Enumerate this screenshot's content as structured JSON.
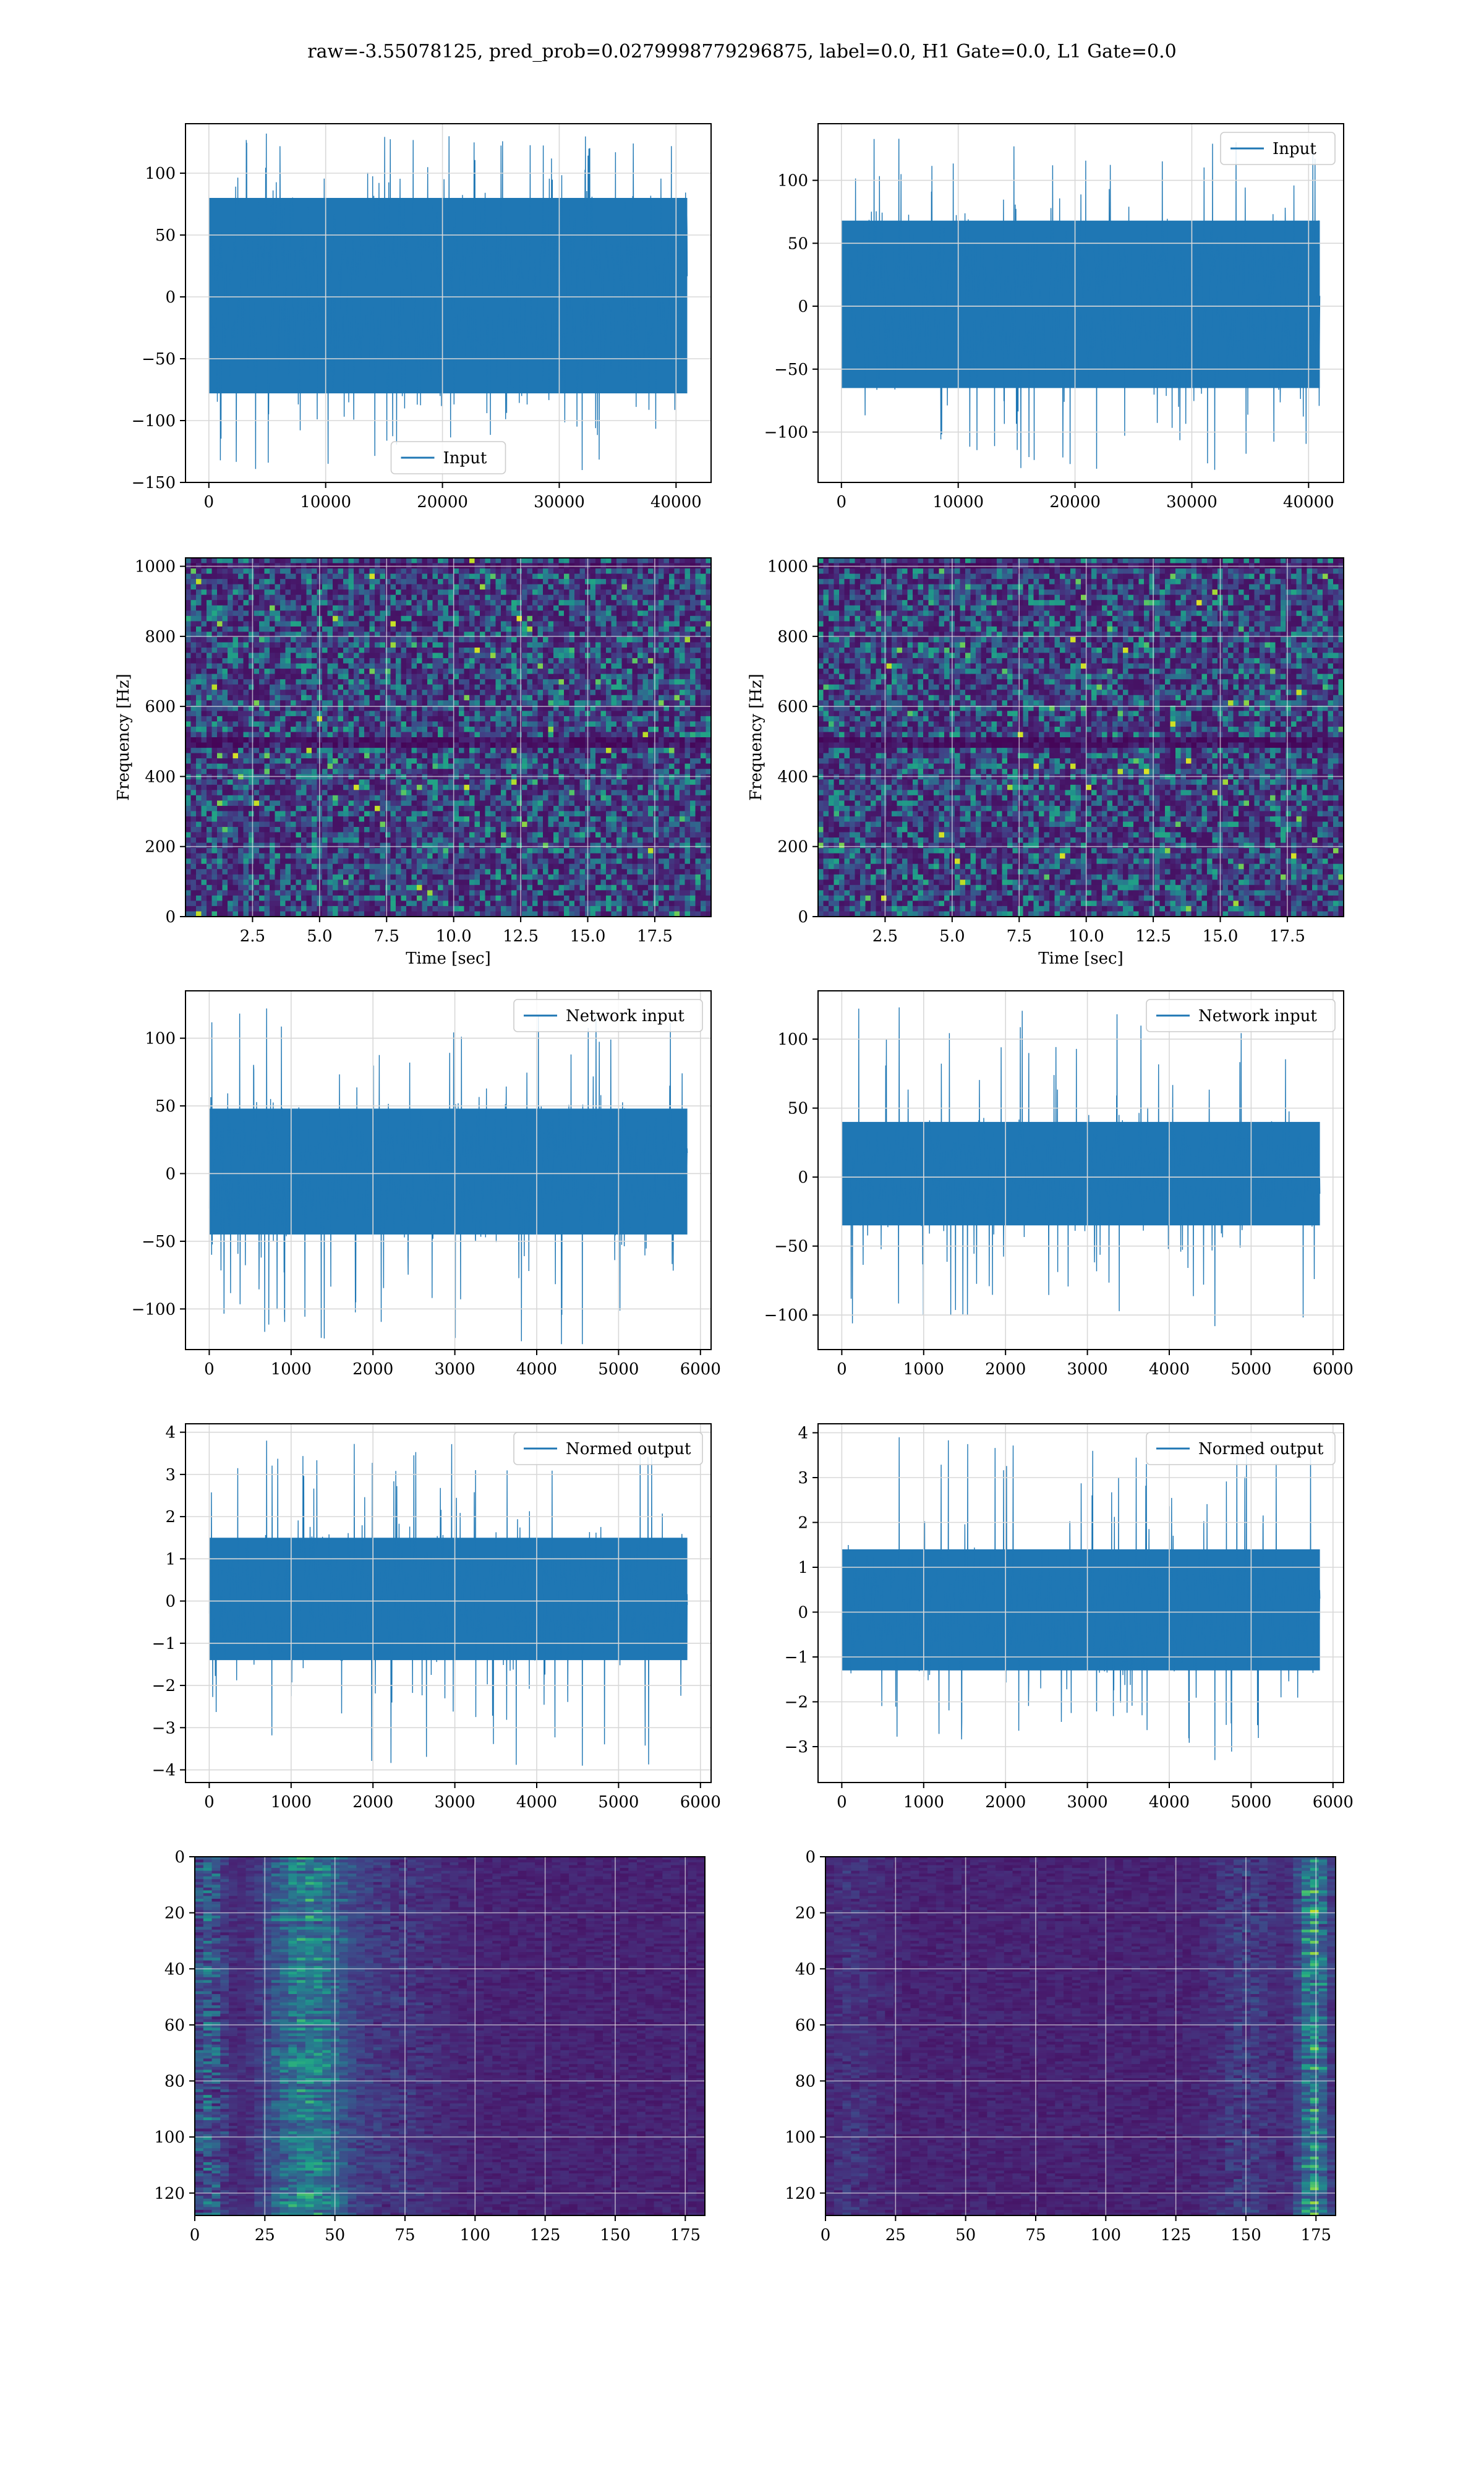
{
  "figure": {
    "title": "raw=-3.55078125, pred_prob=0.0279998779296875, label=0.0, H1 Gate=0.0, L1 Gate=0.0",
    "line_color": "#1f77b4"
  },
  "chart_data": [
    {
      "id": "p00",
      "type": "line",
      "legend": "Input",
      "legend_loc": "lower-center",
      "xlim": [
        -2000,
        43000
      ],
      "ylim": [
        -150,
        140
      ],
      "xticks": [
        0,
        10000,
        20000,
        30000,
        40000
      ],
      "xtick_labels": [
        "0",
        "10000",
        "20000",
        "30000",
        "40000"
      ],
      "yticks": [
        -150,
        -100,
        -50,
        0,
        50,
        100
      ],
      "ytick_labels": [
        "−150",
        "−100",
        "−50",
        "0",
        "50",
        "100"
      ],
      "signal": {
        "n": 40960,
        "x_start": 0,
        "x_end": 40960,
        "band": [
          -78,
          80
        ],
        "min": -140,
        "max": 132
      }
    },
    {
      "id": "p01",
      "type": "line",
      "legend": "Input",
      "legend_loc": "top-right",
      "xlim": [
        -2000,
        43000
      ],
      "ylim": [
        -140,
        145
      ],
      "xticks": [
        0,
        10000,
        20000,
        30000,
        40000
      ],
      "xtick_labels": [
        "0",
        "10000",
        "20000",
        "30000",
        "40000"
      ],
      "yticks": [
        -100,
        -50,
        0,
        50,
        100
      ],
      "ytick_labels": [
        "−100",
        "−50",
        "0",
        "50",
        "100"
      ],
      "signal": {
        "n": 40960,
        "x_start": 0,
        "x_end": 40960,
        "band": [
          -65,
          68
        ],
        "min": -130,
        "max": 133
      }
    },
    {
      "id": "p10",
      "type": "heatmap",
      "xlabel": "Time [sec]",
      "ylabel": "Frequency [Hz]",
      "xlim": [
        0,
        19.6
      ],
      "ylim": [
        0,
        1024
      ],
      "xticks": [
        2.5,
        5.0,
        7.5,
        10.0,
        12.5,
        15.0,
        17.5
      ],
      "xtick_labels": [
        "2.5",
        "5.0",
        "7.5",
        "10.0",
        "12.5",
        "15.0",
        "17.5"
      ],
      "yticks": [
        0,
        200,
        400,
        600,
        800,
        1000
      ],
      "ytick_labels": [
        "0",
        "200",
        "400",
        "600",
        "800",
        "1000"
      ],
      "colormap": "viridis",
      "texture": "noise",
      "dark_bands_hz": [
        500,
        1000
      ]
    },
    {
      "id": "p11",
      "type": "heatmap",
      "xlabel": "Time [sec]",
      "ylabel": "Frequency [Hz]",
      "xlim": [
        0,
        19.6
      ],
      "ylim": [
        0,
        1024
      ],
      "xticks": [
        2.5,
        5.0,
        7.5,
        10.0,
        12.5,
        15.0,
        17.5
      ],
      "xtick_labels": [
        "2.5",
        "5.0",
        "7.5",
        "10.0",
        "12.5",
        "15.0",
        "17.5"
      ],
      "yticks": [
        0,
        200,
        400,
        600,
        800,
        1000
      ],
      "ytick_labels": [
        "0",
        "200",
        "400",
        "600",
        "800",
        "1000"
      ],
      "colormap": "viridis",
      "texture": "noise",
      "dark_bands_hz": [
        500,
        1000
      ]
    },
    {
      "id": "p20",
      "type": "line",
      "legend": "Network input",
      "legend_loc": "top-right",
      "xlim": [
        -290,
        6130
      ],
      "ylim": [
        -130,
        135
      ],
      "xticks": [
        0,
        1000,
        2000,
        3000,
        4000,
        5000,
        6000
      ],
      "xtick_labels": [
        "0",
        "1000",
        "2000",
        "3000",
        "4000",
        "5000",
        "6000"
      ],
      "yticks": [
        -100,
        -50,
        0,
        50,
        100
      ],
      "ytick_labels": [
        "−100",
        "−50",
        "0",
        "50",
        "100"
      ],
      "signal": {
        "n": 5840,
        "x_start": 0,
        "x_end": 5840,
        "band": [
          -45,
          48
        ],
        "min": -126,
        "max": 122
      }
    },
    {
      "id": "p21",
      "type": "line",
      "legend": "Network input",
      "legend_loc": "top-right",
      "xlim": [
        -290,
        6130
      ],
      "ylim": [
        -125,
        135
      ],
      "xticks": [
        0,
        1000,
        2000,
        3000,
        4000,
        5000,
        6000
      ],
      "xtick_labels": [
        "0",
        "1000",
        "2000",
        "3000",
        "4000",
        "5000",
        "6000"
      ],
      "yticks": [
        -100,
        -50,
        0,
        50,
        100
      ],
      "ytick_labels": [
        "−100",
        "−50",
        "0",
        "50",
        "100"
      ],
      "signal": {
        "n": 5840,
        "x_start": 0,
        "x_end": 5840,
        "band": [
          -35,
          40
        ],
        "min": -108,
        "max": 123
      }
    },
    {
      "id": "p30",
      "type": "line",
      "legend": "Normed output",
      "legend_loc": "top-right",
      "xlim": [
        -290,
        6130
      ],
      "ylim": [
        -4.3,
        4.2
      ],
      "xticks": [
        0,
        1000,
        2000,
        3000,
        4000,
        5000,
        6000
      ],
      "xtick_labels": [
        "0",
        "1000",
        "2000",
        "3000",
        "4000",
        "5000",
        "6000"
      ],
      "yticks": [
        -4,
        -3,
        -2,
        -1,
        0,
        1,
        2,
        3,
        4
      ],
      "ytick_labels": [
        "−4",
        "−3",
        "−2",
        "−1",
        "0",
        "1",
        "2",
        "3",
        "4"
      ],
      "signal": {
        "n": 5840,
        "x_start": 0,
        "x_end": 5840,
        "band": [
          -1.4,
          1.5
        ],
        "min": -3.9,
        "max": 3.8
      }
    },
    {
      "id": "p31",
      "type": "line",
      "legend": "Normed output",
      "legend_loc": "top-right",
      "xlim": [
        -290,
        6130
      ],
      "ylim": [
        -3.8,
        4.2
      ],
      "xticks": [
        0,
        1000,
        2000,
        3000,
        4000,
        5000,
        6000
      ],
      "xtick_labels": [
        "0",
        "1000",
        "2000",
        "3000",
        "4000",
        "5000",
        "6000"
      ],
      "yticks": [
        -3,
        -2,
        -1,
        0,
        1,
        2,
        3,
        4
      ],
      "ytick_labels": [
        "−3",
        "−2",
        "−1",
        "0",
        "1",
        "2",
        "3",
        "4"
      ],
      "signal": {
        "n": 5840,
        "x_start": 0,
        "x_end": 5840,
        "band": [
          -1.3,
          1.4
        ],
        "min": -3.3,
        "max": 3.9
      }
    },
    {
      "id": "p40",
      "type": "heatmap",
      "xlim": [
        0,
        182
      ],
      "ylim": [
        128,
        0
      ],
      "xticks": [
        0,
        25,
        50,
        75,
        100,
        125,
        150,
        175
      ],
      "xtick_labels": [
        "0",
        "25",
        "50",
        "75",
        "100",
        "125",
        "150",
        "175"
      ],
      "yticks": [
        0,
        20,
        40,
        60,
        80,
        100,
        120
      ],
      "ytick_labels": [
        "0",
        "20",
        "40",
        "60",
        "80",
        "100",
        "120"
      ],
      "colormap": "viridis",
      "texture": "streaks",
      "energy": "left"
    },
    {
      "id": "p41",
      "type": "heatmap",
      "xlim": [
        0,
        182
      ],
      "ylim": [
        128,
        0
      ],
      "xticks": [
        0,
        25,
        50,
        75,
        100,
        125,
        150,
        175
      ],
      "xtick_labels": [
        "0",
        "25",
        "50",
        "75",
        "100",
        "125",
        "150",
        "175"
      ],
      "yticks": [
        0,
        20,
        40,
        60,
        80,
        100,
        120
      ],
      "ytick_labels": [
        "0",
        "20",
        "40",
        "60",
        "80",
        "100",
        "120"
      ],
      "colormap": "viridis",
      "texture": "streaks",
      "energy": "right"
    }
  ]
}
